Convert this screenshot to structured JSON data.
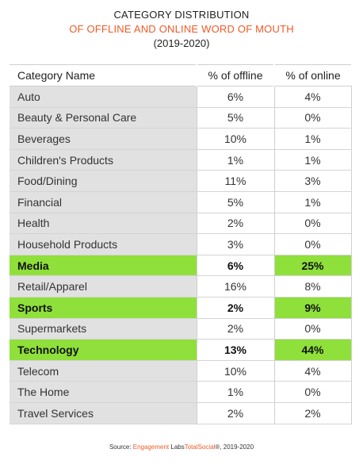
{
  "header": {
    "title_line1": "CATEGORY DISTRIBUTION",
    "title_line2": "OF OFFLINE AND ONLINE WORD OF MOUTH",
    "title_line3": "(2019-2020)"
  },
  "colors": {
    "accent_orange": "#f05a28",
    "highlight_green": "#8fe03a",
    "name_column_gray": "#e2e1e1"
  },
  "chart_data": {
    "type": "table",
    "title": "CATEGORY DISTRIBUTION OF OFFLINE AND ONLINE WORD OF MOUTH (2019-2020)",
    "columns": [
      "Category Name",
      "% of offline",
      "% of online"
    ],
    "rows": [
      {
        "name": "Auto",
        "offline": "6%",
        "online": "4%",
        "highlight": false
      },
      {
        "name": "Beauty & Personal Care",
        "offline": "5%",
        "online": "0%",
        "highlight": false
      },
      {
        "name": "Beverages",
        "offline": "10%",
        "online": "1%",
        "highlight": false
      },
      {
        "name": "Children's Products",
        "offline": "1%",
        "online": "1%",
        "highlight": false
      },
      {
        "name": "Food/Dining",
        "offline": "11%",
        "online": "3%",
        "highlight": false
      },
      {
        "name": "Financial",
        "offline": "5%",
        "online": "1%",
        "highlight": false
      },
      {
        "name": "Health",
        "offline": "2%",
        "online": "0%",
        "highlight": false
      },
      {
        "name": "Household Products",
        "offline": "3%",
        "online": "0%",
        "highlight": false
      },
      {
        "name": "Media",
        "offline": "6%",
        "online": "25%",
        "highlight": true
      },
      {
        "name": "Retail/Apparel",
        "offline": "16%",
        "online": "8%",
        "highlight": false
      },
      {
        "name": "Sports",
        "offline": "2%",
        "online": "9%",
        "highlight": true
      },
      {
        "name": "Supermarkets",
        "offline": "2%",
        "online": "0%",
        "highlight": false
      },
      {
        "name": "Technology",
        "offline": "13%",
        "online": "44%",
        "highlight": true
      },
      {
        "name": "Telecom",
        "offline": "10%",
        "online": "4%",
        "highlight": false
      },
      {
        "name": "The Home",
        "offline": "1%",
        "online": "0%",
        "highlight": false
      },
      {
        "name": "Travel Services",
        "offline": "2%",
        "online": "2%",
        "highlight": false
      }
    ]
  },
  "footer": {
    "source_prefix": "Source:",
    "brand1": "Engagement",
    "mid": "Labs",
    "brand2": "TotalSocial",
    "suffix": "®, 2019-2020"
  }
}
